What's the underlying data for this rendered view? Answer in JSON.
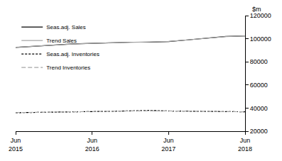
{
  "chart_data": {
    "type": "line",
    "y_label": "$m",
    "categories": [
      "Jun 2015",
      null,
      null,
      null,
      "Jun 2016",
      null,
      null,
      null,
      "Jun 2017",
      null,
      null,
      null,
      "Jun 2018"
    ],
    "series": [
      {
        "name": "Seas.adj. Sales",
        "color": "#000000",
        "line_style": "solid",
        "values": [
          92500,
          93500,
          94500,
          95500,
          96000,
          96500,
          97000,
          97000,
          97500,
          99000,
          100500,
          102000,
          102500
        ]
      },
      {
        "name": "Trend Sales",
        "color": "#a6a6a6",
        "line_style": "solid",
        "values": [
          92600,
          93600,
          94600,
          95400,
          96000,
          96500,
          96900,
          97100,
          97700,
          99000,
          100500,
          101800,
          102400
        ]
      },
      {
        "name": "Seas.adj. Inventories",
        "color": "#000000",
        "line_style": "dashed",
        "values": [
          36000,
          36300,
          36800,
          37000,
          37000,
          37200,
          37500,
          38000,
          37500,
          37300,
          37000,
          36800,
          36800
        ]
      },
      {
        "name": "Trend Inventories",
        "color": "#a6a6a6",
        "line_style": "long_dashed",
        "values": [
          36100,
          36400,
          36700,
          36900,
          37100,
          37300,
          37500,
          37700,
          37500,
          37300,
          37000,
          36900,
          36800
        ]
      }
    ],
    "ylim": [
      20000,
      120000
    ],
    "yticks": [
      20000,
      40000,
      60000,
      80000,
      100000,
      120000
    ],
    "legend": "top-left",
    "grid": false
  }
}
